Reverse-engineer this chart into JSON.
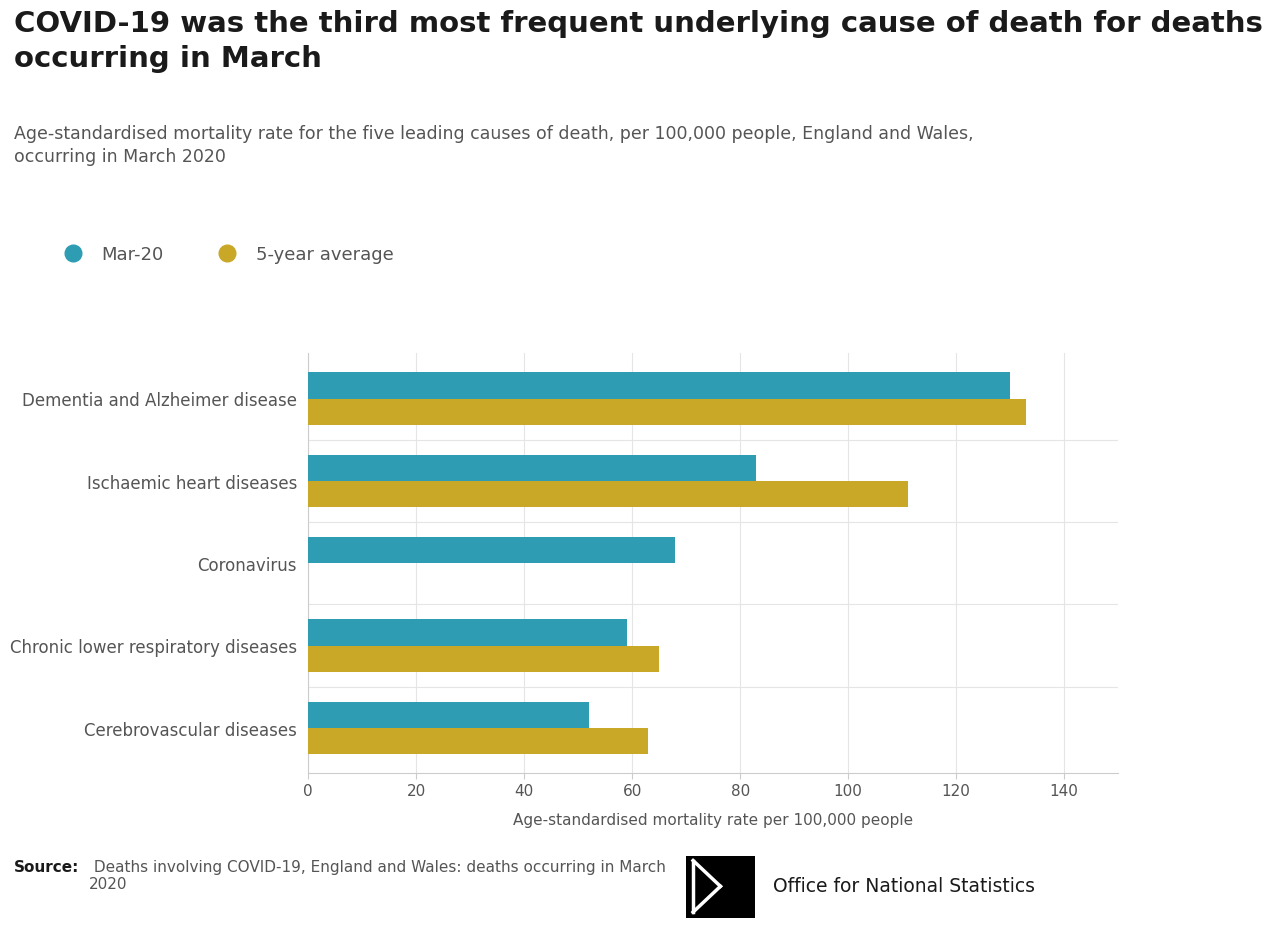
{
  "title": "COVID-19 was the third most frequent underlying cause of death for deaths\noccurring in March",
  "subtitle": "Age-standardised mortality rate for the five leading causes of death, per 100,000 people, England and Wales,\noccurring in March 2020",
  "categories": [
    "Dementia and Alzheimer disease",
    "Ischaemic heart diseases",
    "Coronavirus",
    "Chronic lower respiratory diseases",
    "Cerebrovascular diseases"
  ],
  "mar20_values": [
    130,
    83,
    68,
    59,
    52
  ],
  "avg5yr_values": [
    133,
    111,
    0,
    65,
    63
  ],
  "mar20_color": "#2e9db3",
  "avg5yr_color": "#c9a827",
  "xlabel": "Age-standardised mortality rate per 100,000 people",
  "xlim": [
    0,
    150
  ],
  "xticks": [
    0,
    20,
    40,
    60,
    80,
    100,
    120,
    140
  ],
  "legend_mar20": "Mar-20",
  "legend_avg": "5-year average",
  "source_bold": "Source:",
  "source_text": " Deaths involving COVID-19, England and Wales: deaths occurring in March\n2020",
  "ons_text": "Office for National Statistics",
  "background_color": "#ffffff",
  "bar_height": 0.32,
  "title_fontsize": 21,
  "subtitle_fontsize": 12.5,
  "label_fontsize": 12,
  "xlabel_fontsize": 11,
  "legend_fontsize": 13,
  "tick_fontsize": 11
}
